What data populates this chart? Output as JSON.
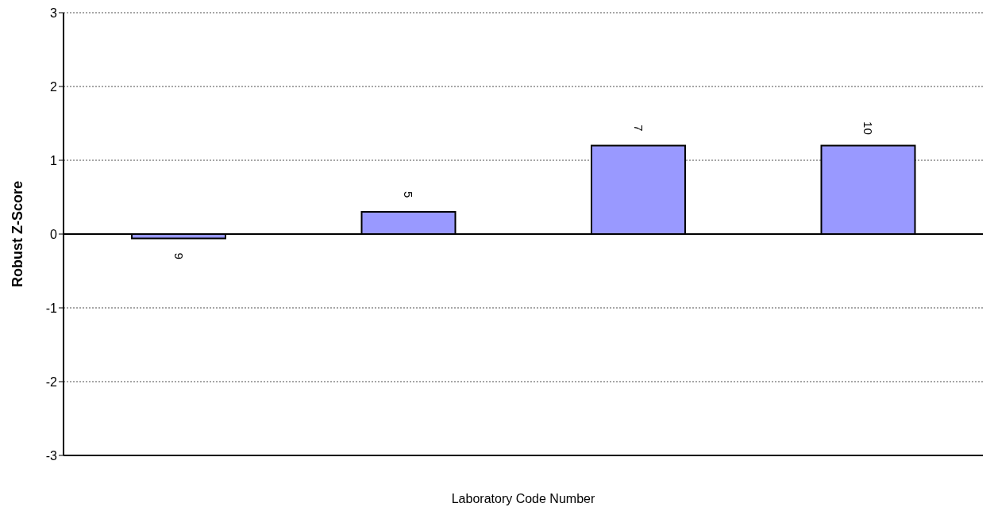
{
  "chart_data": {
    "type": "bar",
    "xlabel": "Laboratory Code Number",
    "ylabel": "Robust Z-Score",
    "categories": [
      "9",
      "5",
      "7",
      "10"
    ],
    "values": [
      -0.06,
      0.3,
      1.2,
      1.2
    ],
    "color": "#9999ff",
    "ylim": [
      -3,
      3
    ],
    "yticks": [
      -3,
      -2,
      -1,
      0,
      1,
      2,
      3
    ],
    "grid": "y",
    "tick_labels": "y",
    "ref_lines": [
      {
        "axis": "y",
        "value": 0,
        "color": "#000000"
      }
    ]
  }
}
